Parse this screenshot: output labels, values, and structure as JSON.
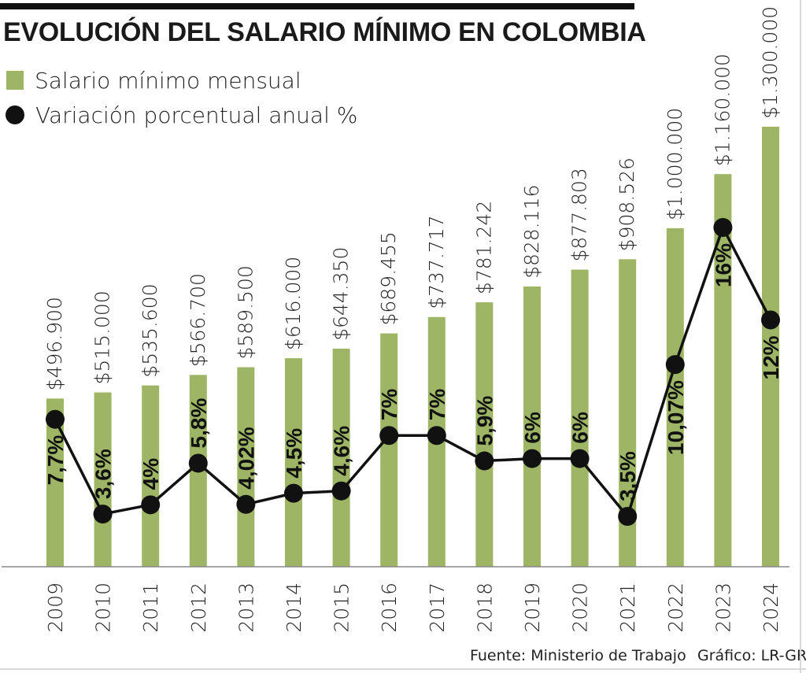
{
  "title": "EVOLUCIÓN DEL SALARIO MÍNIMO EN COLOMBIA",
  "legend": {
    "bars_label": "Salario mínimo mensual",
    "line_label": "Variación porcentual anual %"
  },
  "footer": {
    "source": "Fuente: Ministerio de Trabajo",
    "credit": "Gráfico: LR-GR"
  },
  "colors": {
    "bar": "#9db565",
    "line": "#111111",
    "text": "#222222"
  },
  "chart_data": {
    "type": "bar",
    "title": "EVOLUCIÓN DEL SALARIO MÍNIMO EN COLOMBIA",
    "categories": [
      "2009",
      "2010",
      "2011",
      "2012",
      "2013",
      "2014",
      "2015",
      "2016",
      "2017",
      "2018",
      "2019",
      "2020",
      "2021",
      "2022",
      "2023",
      "2024"
    ],
    "series": [
      {
        "name": "Salario mínimo mensual",
        "type": "bar",
        "values": [
          496900,
          515000,
          535600,
          566700,
          589500,
          616000,
          644350,
          689455,
          737717,
          781242,
          828116,
          877803,
          908526,
          1000000,
          1160000,
          1300000
        ],
        "labels": [
          "$496.900",
          "$515.000",
          "$535.600",
          "$566.700",
          "$589.500",
          "$616.000",
          "$644.350",
          "$689.455",
          "$737.717",
          "$781.242",
          "$828.116",
          "$877.803",
          "$908.526",
          "$1.000.000",
          "$1.160.000",
          "$1.300.000"
        ]
      },
      {
        "name": "Variación porcentual anual %",
        "type": "line",
        "values": [
          7.7,
          3.6,
          4,
          5.8,
          4.02,
          4.5,
          4.6,
          7,
          7,
          5.9,
          6,
          6,
          3.5,
          10.07,
          16,
          12
        ],
        "labels": [
          "7,7%",
          "3,6%",
          "4%",
          "5,8%",
          "4,02%",
          "4,5%",
          "4,6%",
          "7%",
          "7%",
          "5,9%",
          "6%",
          "6%",
          "3,5%",
          "10,07%",
          "16%",
          "12%"
        ]
      }
    ],
    "xlabel": "",
    "ylabel": "",
    "bar_ylim": [
      0,
      1300000
    ],
    "line_ylim": [
      3.5,
      16
    ]
  }
}
